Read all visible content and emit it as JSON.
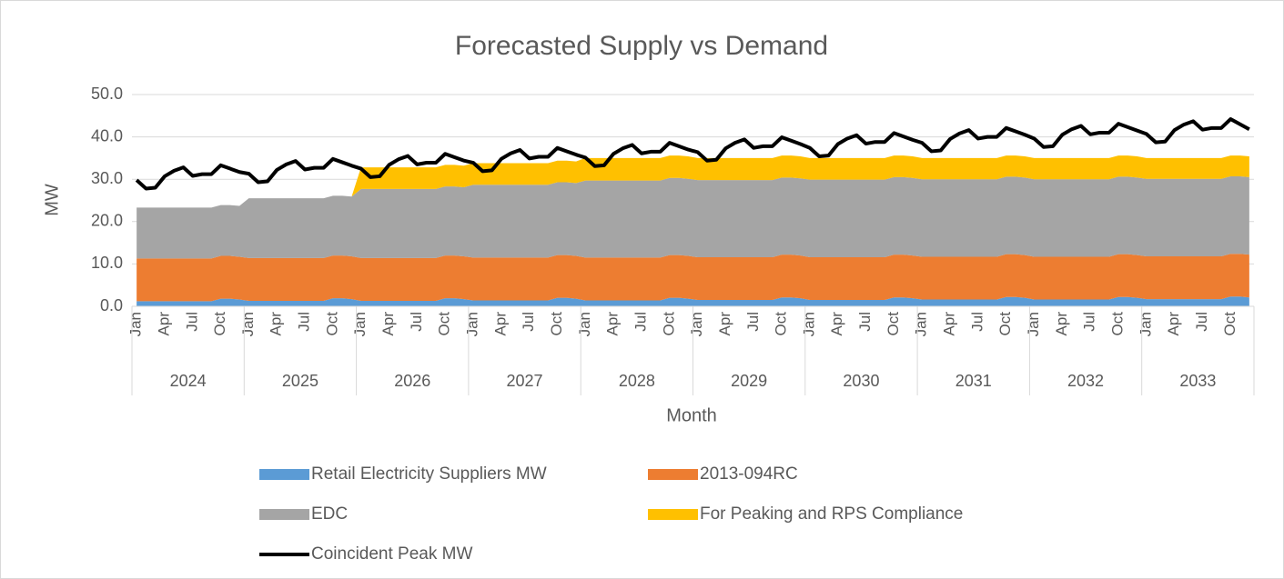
{
  "chart_data": {
    "type": "stacked_area_line",
    "title": "Forecasted Supply vs Demand",
    "x_label": "Month",
    "y_label": "MW",
    "categories": [
      "Jan",
      null,
      null,
      "Apr",
      null,
      null,
      "Jul",
      null,
      null,
      "Oct",
      null,
      null,
      "Jan",
      null,
      null,
      "Apr",
      null,
      null,
      "Jul",
      null,
      null,
      "Oct",
      null,
      null,
      "Jan",
      null,
      null,
      "Apr",
      null,
      null,
      "Jul",
      null,
      null,
      "Oct",
      null,
      null,
      "Jan",
      null,
      null,
      "Apr",
      null,
      null,
      "Jul",
      null,
      null,
      "Oct",
      null,
      null,
      "Jan",
      null,
      null,
      "Apr",
      null,
      null,
      "Jul",
      null,
      null,
      "Oct",
      null,
      null,
      "Jan",
      null,
      null,
      "Apr",
      null,
      null,
      "Jul",
      null,
      null,
      "Oct",
      null,
      null,
      "Jan",
      null,
      null,
      "Apr",
      null,
      null,
      "Jul",
      null,
      null,
      "Oct",
      null,
      null,
      "Jan",
      null,
      null,
      "Apr",
      null,
      null,
      "Jul",
      null,
      null,
      "Oct",
      null,
      null,
      "Jan",
      null,
      null,
      "Apr",
      null,
      null,
      "Jul",
      null,
      null,
      "Oct",
      null,
      null,
      "Jan",
      null,
      null,
      "Apr",
      null,
      null,
      "Jul",
      null,
      null,
      "Oct",
      null,
      null
    ],
    "years": [
      "2024",
      "2025",
      "2026",
      "2027",
      "2028",
      "2029",
      "2030",
      "2031",
      "2032",
      "2033"
    ],
    "ylim": [
      0,
      50
    ],
    "yticks": [
      {
        "value": 0,
        "label": "0.0"
      },
      {
        "value": 10,
        "label": "10.0"
      },
      {
        "value": 20,
        "label": "20.0"
      },
      {
        "value": 30,
        "label": "30.0"
      },
      {
        "value": 40,
        "label": "40.0"
      },
      {
        "value": 50,
        "label": "50.0"
      }
    ],
    "grid": true,
    "legend": "bottom",
    "series": [
      {
        "name": "Retail Electricity Suppliers MW",
        "color": "#5b9bd5",
        "kind": "area",
        "values": [
          1.2,
          1.2,
          1.2,
          1.2,
          1.2,
          1.2,
          1.2,
          1.2,
          1.2,
          1.8,
          1.8,
          1.6,
          1.3,
          1.3,
          1.3,
          1.3,
          1.3,
          1.3,
          1.3,
          1.3,
          1.3,
          1.9,
          1.9,
          1.7,
          1.3,
          1.3,
          1.3,
          1.3,
          1.3,
          1.3,
          1.3,
          1.3,
          1.3,
          1.9,
          1.9,
          1.7,
          1.4,
          1.4,
          1.4,
          1.4,
          1.4,
          1.4,
          1.4,
          1.4,
          1.4,
          2.0,
          2.0,
          1.8,
          1.4,
          1.4,
          1.4,
          1.4,
          1.4,
          1.4,
          1.4,
          1.4,
          1.4,
          2.0,
          2.0,
          1.8,
          1.5,
          1.5,
          1.5,
          1.5,
          1.5,
          1.5,
          1.5,
          1.5,
          1.5,
          2.1,
          2.1,
          1.9,
          1.5,
          1.5,
          1.5,
          1.5,
          1.5,
          1.5,
          1.5,
          1.5,
          1.5,
          2.1,
          2.1,
          1.9,
          1.6,
          1.6,
          1.6,
          1.6,
          1.6,
          1.6,
          1.6,
          1.6,
          1.6,
          2.2,
          2.2,
          2.0,
          1.6,
          1.6,
          1.6,
          1.6,
          1.6,
          1.6,
          1.6,
          1.6,
          1.6,
          2.2,
          2.2,
          2.0,
          1.7,
          1.7,
          1.7,
          1.7,
          1.7,
          1.7,
          1.7,
          1.7,
          1.7,
          2.3,
          2.3,
          2.1
        ]
      },
      {
        "name": "2013-094RC",
        "color": "#ed7d31",
        "kind": "area",
        "values": [
          10.1,
          10.1,
          10.1,
          10.1,
          10.1,
          10.1,
          10.1,
          10.1,
          10.1,
          10.1,
          10.1,
          10.1,
          10.1,
          10.1,
          10.1,
          10.1,
          10.1,
          10.1,
          10.1,
          10.1,
          10.1,
          10.1,
          10.1,
          10.1,
          10.1,
          10.1,
          10.1,
          10.1,
          10.1,
          10.1,
          10.1,
          10.1,
          10.1,
          10.1,
          10.1,
          10.1,
          10.1,
          10.1,
          10.1,
          10.1,
          10.1,
          10.1,
          10.1,
          10.1,
          10.1,
          10.1,
          10.1,
          10.1,
          10.1,
          10.1,
          10.1,
          10.1,
          10.1,
          10.1,
          10.1,
          10.1,
          10.1,
          10.1,
          10.1,
          10.1,
          10.1,
          10.1,
          10.1,
          10.1,
          10.1,
          10.1,
          10.1,
          10.1,
          10.1,
          10.1,
          10.1,
          10.1,
          10.1,
          10.1,
          10.1,
          10.1,
          10.1,
          10.1,
          10.1,
          10.1,
          10.1,
          10.1,
          10.1,
          10.1,
          10.1,
          10.1,
          10.1,
          10.1,
          10.1,
          10.1,
          10.1,
          10.1,
          10.1,
          10.1,
          10.1,
          10.1,
          10.1,
          10.1,
          10.1,
          10.1,
          10.1,
          10.1,
          10.1,
          10.1,
          10.1,
          10.1,
          10.1,
          10.1,
          10.1,
          10.1,
          10.1,
          10.1,
          10.1,
          10.1,
          10.1,
          10.1,
          10.1,
          10.1,
          10.1,
          10.1
        ]
      },
      {
        "name": "EDC",
        "color": "#a5a5a5",
        "kind": "area",
        "values": [
          12.0,
          12.0,
          12.0,
          12.0,
          12.0,
          12.0,
          12.0,
          12.0,
          12.0,
          12.0,
          12.0,
          12.0,
          14.1,
          14.1,
          14.1,
          14.1,
          14.1,
          14.1,
          14.1,
          14.1,
          14.1,
          14.1,
          14.1,
          14.1,
          16.3,
          16.3,
          16.3,
          16.3,
          16.3,
          16.3,
          16.3,
          16.3,
          16.3,
          16.3,
          16.3,
          16.3,
          17.2,
          17.2,
          17.2,
          17.2,
          17.2,
          17.2,
          17.2,
          17.2,
          17.2,
          17.2,
          17.2,
          17.2,
          18.2,
          18.2,
          18.2,
          18.2,
          18.2,
          18.2,
          18.2,
          18.2,
          18.2,
          18.2,
          18.2,
          18.2,
          18.2,
          18.2,
          18.2,
          18.2,
          18.2,
          18.2,
          18.2,
          18.2,
          18.2,
          18.2,
          18.2,
          18.2,
          18.3,
          18.3,
          18.3,
          18.3,
          18.3,
          18.3,
          18.3,
          18.3,
          18.3,
          18.3,
          18.3,
          18.3,
          18.3,
          18.3,
          18.3,
          18.3,
          18.3,
          18.3,
          18.3,
          18.3,
          18.3,
          18.3,
          18.3,
          18.3,
          18.3,
          18.3,
          18.3,
          18.3,
          18.3,
          18.3,
          18.3,
          18.3,
          18.3,
          18.3,
          18.3,
          18.3,
          18.3,
          18.3,
          18.3,
          18.3,
          18.3,
          18.3,
          18.3,
          18.3,
          18.3,
          18.3,
          18.3,
          18.3
        ]
      },
      {
        "name": "For Peaking and RPS Compliance",
        "color": "#ffc000",
        "kind": "area",
        "values": [
          0,
          0,
          0,
          0,
          0,
          0,
          0,
          0,
          0,
          0,
          0,
          0,
          0,
          0,
          0,
          0,
          0,
          0,
          0,
          0,
          0,
          0,
          0,
          0,
          5.1,
          5.1,
          5.1,
          5.1,
          5.1,
          5.1,
          5.1,
          5.1,
          5.1,
          5.1,
          5.1,
          5.1,
          5.1,
          5.1,
          5.1,
          5.1,
          5.1,
          5.1,
          5.1,
          5.1,
          5.1,
          5.1,
          5.1,
          5.1,
          5.3,
          5.3,
          5.3,
          5.3,
          5.3,
          5.3,
          5.3,
          5.3,
          5.3,
          5.3,
          5.3,
          5.3,
          5.2,
          5.2,
          5.2,
          5.2,
          5.2,
          5.2,
          5.2,
          5.2,
          5.2,
          5.2,
          5.2,
          5.2,
          5.1,
          5.1,
          5.1,
          5.1,
          5.1,
          5.1,
          5.1,
          5.1,
          5.1,
          5.1,
          5.1,
          5.1,
          5.0,
          5.0,
          5.0,
          5.0,
          5.0,
          5.0,
          5.0,
          5.0,
          5.0,
          5.0,
          5.0,
          5.0,
          5.0,
          5.0,
          5.0,
          5.0,
          5.0,
          5.0,
          5.0,
          5.0,
          5.0,
          5.0,
          5.0,
          5.0,
          4.9,
          4.9,
          4.9,
          4.9,
          4.9,
          4.9,
          4.9,
          4.9,
          4.9,
          4.9,
          4.9,
          4.9
        ]
      },
      {
        "name": "Coincident Peak MW",
        "color": "#000000",
        "kind": "line",
        "values": [
          29.8,
          27.8,
          28.0,
          30.7,
          32.0,
          32.8,
          30.8,
          31.2,
          31.2,
          33.3,
          32.5,
          31.7,
          31.3,
          29.3,
          29.5,
          32.2,
          33.5,
          34.3,
          32.3,
          32.7,
          32.7,
          34.8,
          34.0,
          33.2,
          32.5,
          30.5,
          30.7,
          33.4,
          34.7,
          35.5,
          33.5,
          33.9,
          33.9,
          36.0,
          35.2,
          34.4,
          33.9,
          31.9,
          32.1,
          34.8,
          36.1,
          36.9,
          34.9,
          35.3,
          35.3,
          37.4,
          36.6,
          35.8,
          35.1,
          33.1,
          33.3,
          36.0,
          37.3,
          38.1,
          36.1,
          36.5,
          36.5,
          38.6,
          37.8,
          37.0,
          36.4,
          34.4,
          34.6,
          37.3,
          38.6,
          39.4,
          37.4,
          37.8,
          37.8,
          39.9,
          39.1,
          38.3,
          37.4,
          35.4,
          35.6,
          38.3,
          39.6,
          40.4,
          38.4,
          38.8,
          38.8,
          40.9,
          40.1,
          39.3,
          38.6,
          36.6,
          36.8,
          39.5,
          40.8,
          41.6,
          39.6,
          40.0,
          40.0,
          42.1,
          41.3,
          40.5,
          39.6,
          37.6,
          37.8,
          40.5,
          41.8,
          42.6,
          40.6,
          41.0,
          41.0,
          43.1,
          42.3,
          41.5,
          40.7,
          38.7,
          38.9,
          41.6,
          42.9,
          43.7,
          41.7,
          42.1,
          42.1,
          44.2,
          43.0,
          41.8
        ]
      }
    ]
  }
}
